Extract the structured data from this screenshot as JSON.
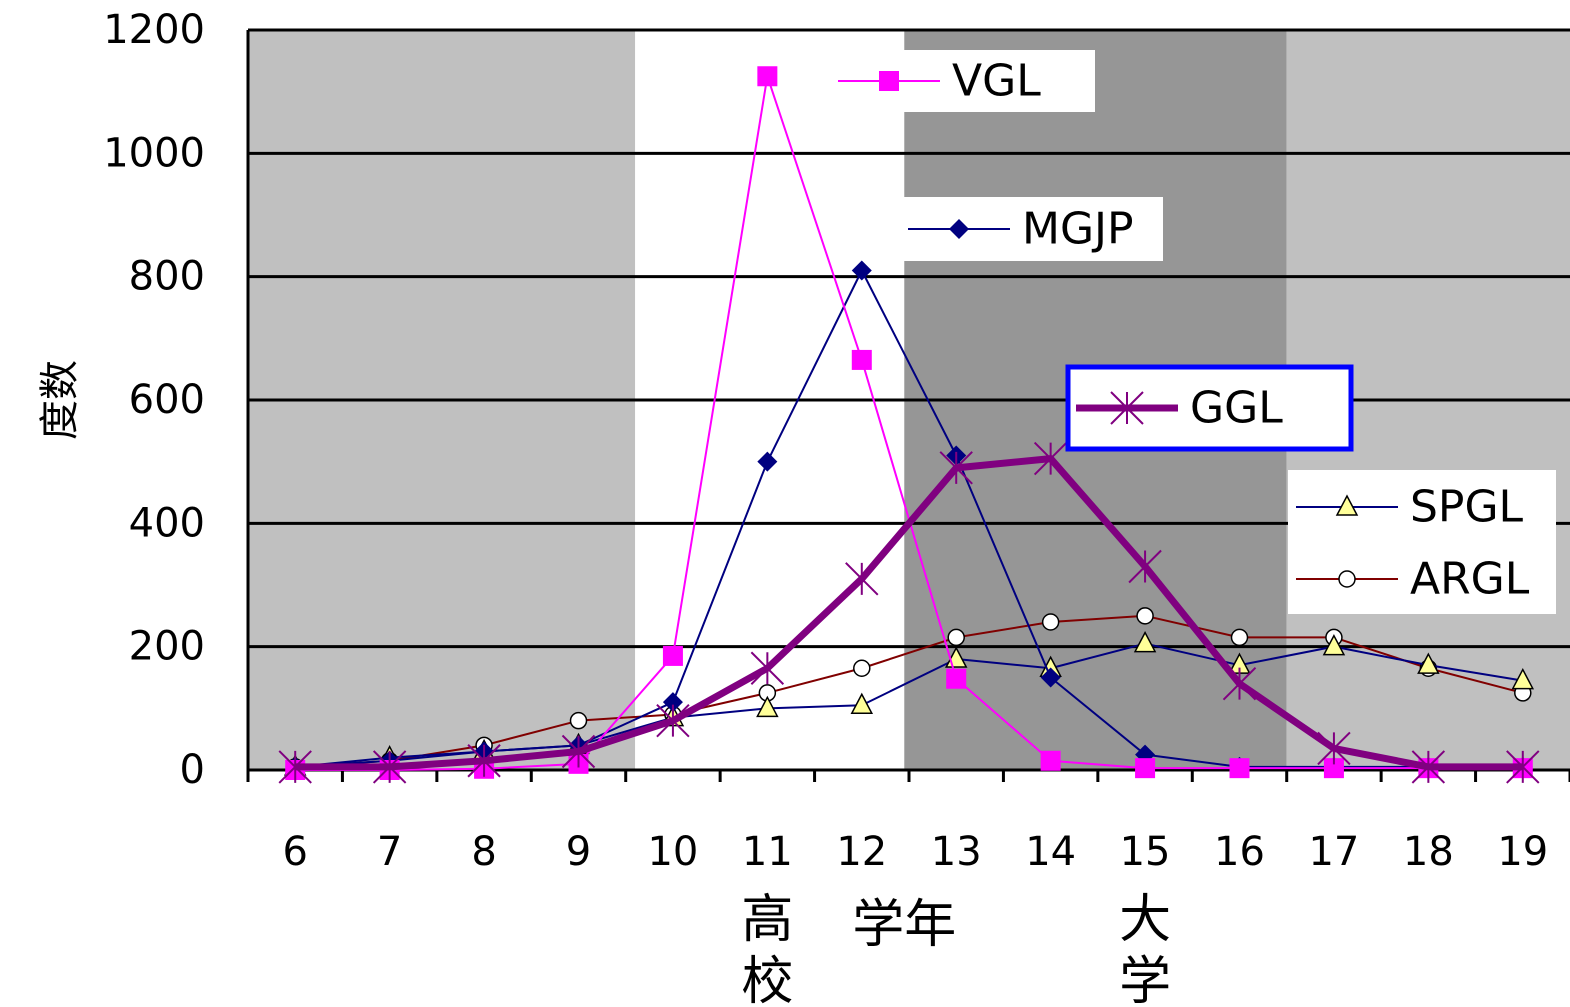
{
  "chart_data": {
    "type": "line",
    "ylabel": "度数",
    "x": [
      6,
      7,
      8,
      9,
      10,
      11,
      12,
      13,
      14,
      15,
      16,
      17,
      18,
      19
    ],
    "ylim": [
      0,
      1200
    ],
    "yticks": [
      0,
      200,
      400,
      600,
      800,
      1000,
      1200
    ],
    "grid": true,
    "bands": [
      {
        "from": 5.5,
        "to": 9.6,
        "color": "#c0c0c0"
      },
      {
        "from": 9.6,
        "to": 12.45,
        "color": "#ffffff"
      },
      {
        "from": 12.45,
        "to": 16.5,
        "color": "#969696"
      },
      {
        "from": 16.5,
        "to": 19.5,
        "color": "#c0c0c0"
      }
    ],
    "category_labels": [
      {
        "text": "高校",
        "x": 11
      },
      {
        "text": "学年",
        "x": 12.45
      },
      {
        "text": "大学",
        "x": 15
      }
    ],
    "series": [
      {
        "name": "VGL",
        "color": "#ff00ff",
        "marker": "square",
        "width": 2,
        "values": [
          0,
          0,
          2,
          10,
          185,
          1125,
          665,
          148,
          15,
          3,
          3,
          3,
          3,
          3
        ]
      },
      {
        "name": "MGJP",
        "color": "#000080",
        "marker": "diamond",
        "width": 2,
        "values": [
          5,
          15,
          30,
          40,
          110,
          500,
          810,
          510,
          150,
          25,
          5,
          5,
          5,
          5
        ]
      },
      {
        "name": "GGL",
        "color": "#800080",
        "marker": "asterisk",
        "width": 7,
        "values": [
          5,
          5,
          15,
          30,
          80,
          165,
          310,
          490,
          505,
          330,
          140,
          35,
          5,
          5
        ]
      },
      {
        "name": "SPGL",
        "color": "#000080",
        "marker": "triangle",
        "width": 2,
        "values": [
          5,
          20,
          30,
          40,
          85,
          100,
          105,
          180,
          165,
          205,
          170,
          200,
          170,
          145
        ]
      },
      {
        "name": "ARGL",
        "color": "#800000",
        "marker": "circle",
        "width": 2,
        "values": [
          5,
          15,
          40,
          80,
          90,
          125,
          165,
          215,
          240,
          250,
          215,
          215,
          165,
          125
        ]
      }
    ],
    "legend": [
      {
        "series": "VGL",
        "placement": "top-center"
      },
      {
        "series": "MGJP",
        "placement": "upper-center"
      },
      {
        "series": "GGL",
        "placement": "center-right",
        "highlight": "#0000ff"
      },
      {
        "series": "SPGL",
        "placement": "right"
      },
      {
        "series": "ARGL",
        "placement": "right"
      }
    ]
  }
}
